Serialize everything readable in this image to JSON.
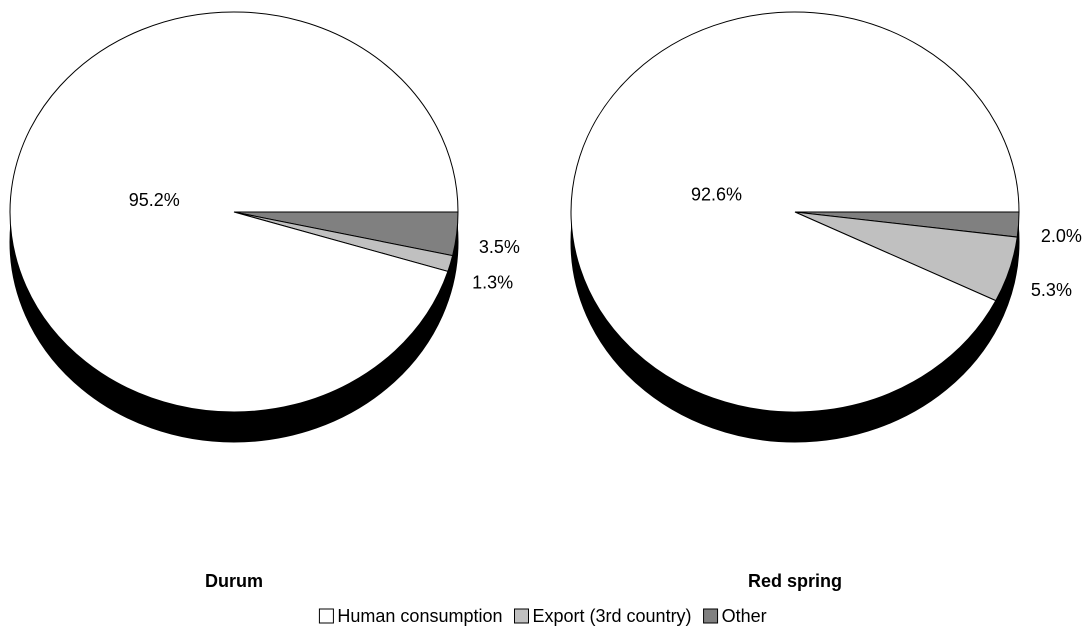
{
  "chart_data": [
    {
      "type": "pie",
      "title": "Durum",
      "values": [
        95.2,
        1.3,
        3.5
      ],
      "value_labels": [
        "95.2%",
        "1.3%",
        "3.5%"
      ]
    },
    {
      "type": "pie",
      "title": "Red spring",
      "values": [
        92.6,
        5.3,
        2.0
      ],
      "value_labels": [
        "92.6%",
        "5.3%",
        "2.0%"
      ]
    }
  ],
  "legend": {
    "labels": [
      "Human consumption",
      "Export (3rd country)",
      "Other"
    ],
    "colors": [
      "#ffffff",
      "#c0c0c0",
      "#808080"
    ]
  }
}
